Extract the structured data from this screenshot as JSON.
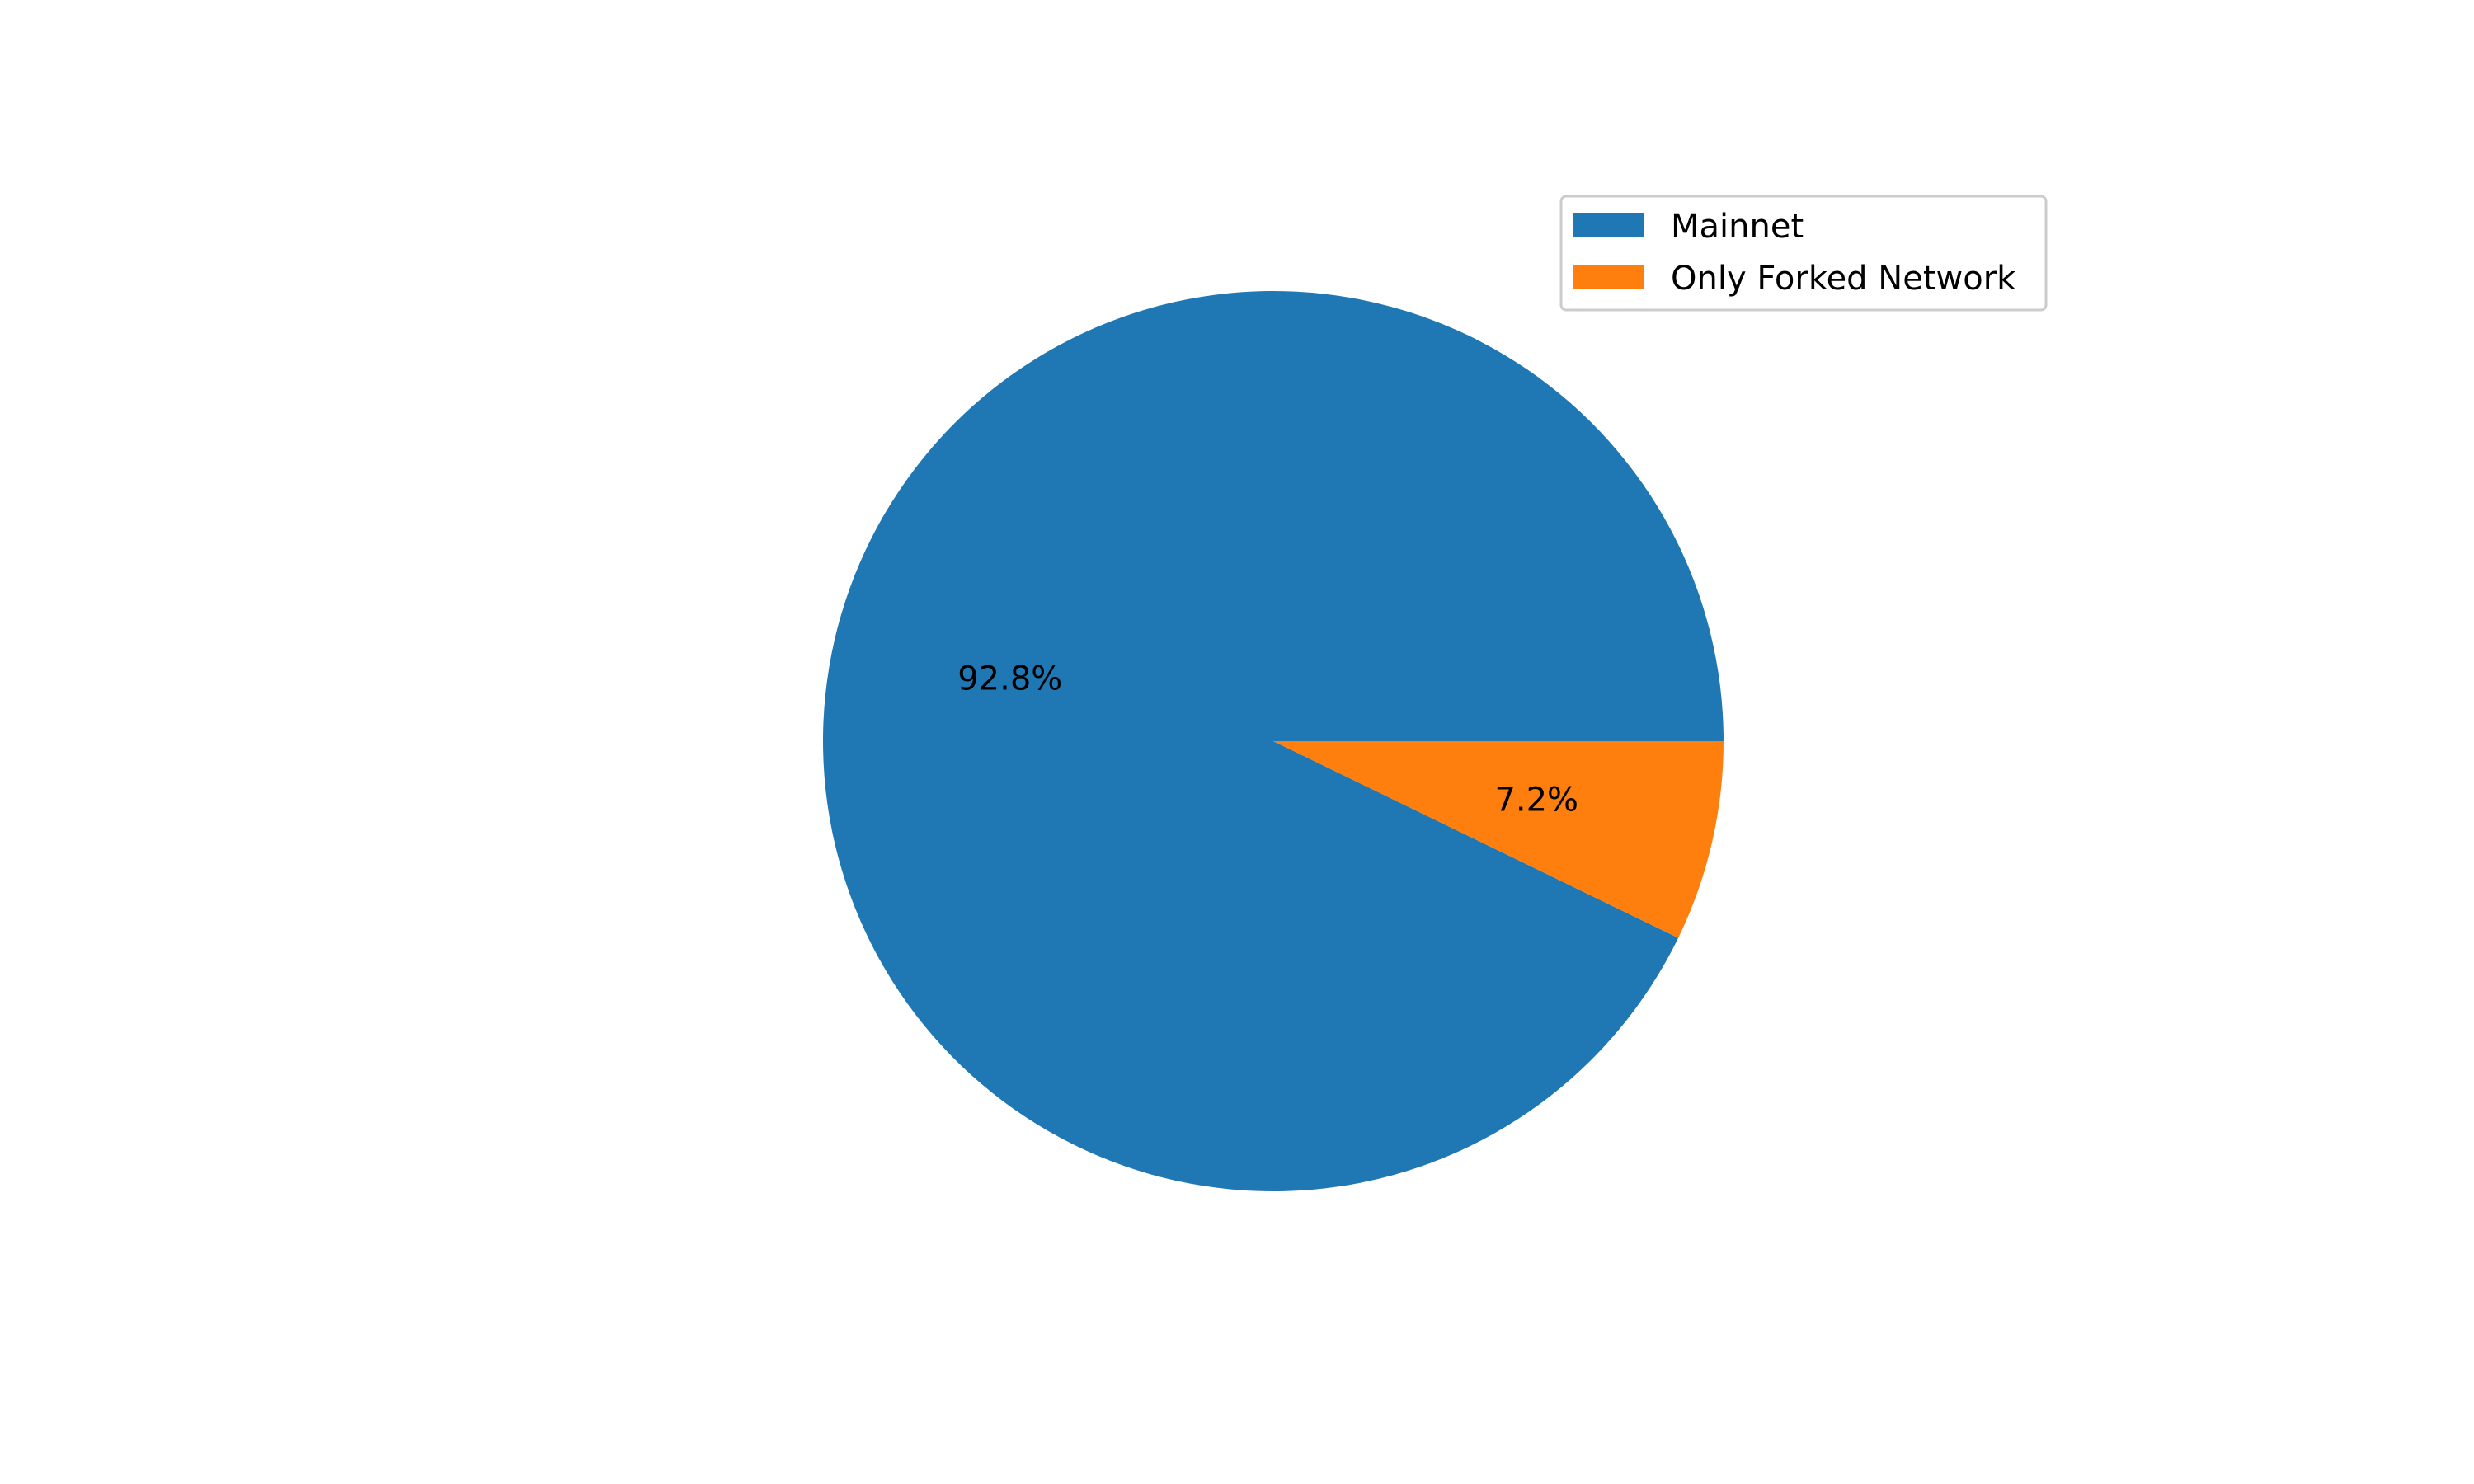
{
  "chart_data": {
    "type": "pie",
    "title": "",
    "labels": [
      "Mainnet",
      "Only Forked Network"
    ],
    "values": [
      92.8,
      7.2
    ],
    "value_labels": [
      "92.8%",
      "7.2%"
    ],
    "colors": [
      "#1f77b4",
      "#ff7f0e"
    ],
    "start_angle_deg": 0,
    "direction": "counterclockwise",
    "legend": {
      "location": "upper right",
      "entries": [
        "Mainnet",
        "Only Forked Network"
      ]
    }
  }
}
